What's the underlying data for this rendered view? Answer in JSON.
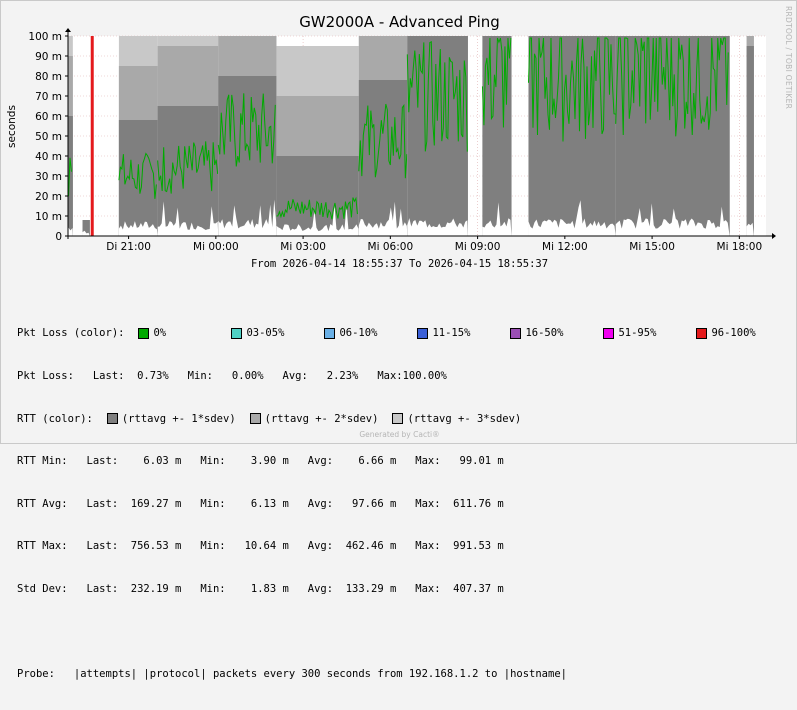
{
  "graph": {
    "title": "GW2000A - Advanced Ping",
    "ylabel": "seconds",
    "watermark": "RRDTOOL / TOBI OETIKER",
    "range_text": "From 2026-04-14 18:55:37 To 2026-04-15 18:55:37",
    "footer": "Generated by Cacti®"
  },
  "chart_data": {
    "type": "area",
    "title": "GW2000A - Advanced Ping",
    "ylabel": "seconds",
    "y_unit": "m",
    "ylim": [
      0,
      100
    ],
    "yticks": [
      0,
      10,
      20,
      30,
      40,
      50,
      60,
      70,
      80,
      90,
      100
    ],
    "ytick_labels": [
      "0",
      "10 m",
      "20 m",
      "30 m",
      "40 m",
      "50 m",
      "60 m",
      "70 m",
      "80 m",
      "90 m",
      "100 m"
    ],
    "xlim": [
      "2026-04-14 18:55",
      "2026-04-15 18:55"
    ],
    "xticks": [
      "2026-04-14 21:00",
      "2026-04-15 00:00",
      "2026-04-15 03:00",
      "2026-04-15 06:00",
      "2026-04-15 09:00",
      "2026-04-15 12:00",
      "2026-04-15 15:00",
      "2026-04-15 18:00"
    ],
    "xtick_labels": [
      "Di 21:00",
      "Mi 00:00",
      "Mi 03:00",
      "Mi 06:00",
      "Mi 09:00",
      "Mi 12:00",
      "Mi 15:00",
      "Mi 18:00"
    ],
    "grid": true,
    "series_colors": {
      "rttavg_1sdev": "#7f7f7f",
      "rttavg_2sdev": "#a9a9a9",
      "rttavg_3sdev": "#c8c8c8",
      "rtt_avg_line": "#00aa00",
      "rtt_min_area": "#ffffff",
      "loss_96_100": "#e41a1c"
    },
    "segments": [
      {
        "start": "2026-04-14 18:56",
        "end": "2026-04-14 19:05",
        "avg": 30,
        "dev1": 60,
        "dev2": 90,
        "dev3": 100,
        "min": 4
      },
      {
        "start": "2026-04-14 19:25",
        "end": "2026-04-14 19:40",
        "avg": 0,
        "dev1": 8,
        "dev2": 8,
        "dev3": 8,
        "min": 2
      },
      {
        "start": "2026-04-14 20:00",
        "end": "2026-04-14 20:25",
        "avg": 0,
        "dev1": 0,
        "dev2": 0,
        "dev3": 0,
        "min": 0
      },
      {
        "start": "2026-04-14 20:40",
        "end": "2026-04-14 22:00",
        "avg": 30,
        "dev1": 58,
        "dev2": 85,
        "dev3": 100,
        "min": 5
      },
      {
        "start": "2026-04-14 22:00",
        "end": "2026-04-15 00:05",
        "avg": 34,
        "dev1": 65,
        "dev2": 95,
        "dev3": 100,
        "min": 5
      },
      {
        "start": "2026-04-15 00:05",
        "end": "2026-04-15 02:05",
        "avg": 52,
        "dev1": 80,
        "dev2": 100,
        "dev3": 100,
        "min": 6
      },
      {
        "start": "2026-04-15 02:05",
        "end": "2026-04-15 04:55",
        "avg": 14,
        "dev1": 40,
        "dev2": 70,
        "dev3": 95,
        "min": 4
      },
      {
        "start": "2026-04-15 04:55",
        "end": "2026-04-15 06:35",
        "avg": 48,
        "dev1": 78,
        "dev2": 100,
        "dev3": 100,
        "min": 6
      },
      {
        "start": "2026-04-15 06:35",
        "end": "2026-04-15 08:40",
        "avg": 70,
        "dev1": 100,
        "dev2": 100,
        "dev3": 100,
        "min": 6
      },
      {
        "start": "2026-04-15 09:10",
        "end": "2026-04-15 10:10",
        "avg": 80,
        "dev1": 100,
        "dev2": 100,
        "dev3": 100,
        "min": 6
      },
      {
        "start": "2026-04-15 10:45",
        "end": "2026-04-15 13:45",
        "avg": 78,
        "dev1": 100,
        "dev2": 100,
        "dev3": 100,
        "min": 6
      },
      {
        "start": "2026-04-15 13:45",
        "end": "2026-04-15 17:40",
        "avg": 82,
        "dev1": 100,
        "dev2": 100,
        "dev3": 100,
        "min": 6
      },
      {
        "start": "2026-04-15 18:15",
        "end": "2026-04-15 18:30",
        "avg": 0,
        "dev1": 95,
        "dev2": 100,
        "dev3": 100,
        "min": 6
      }
    ],
    "loss_markers": [
      {
        "time": "2026-04-14 19:45",
        "class": "96-100%"
      }
    ]
  },
  "legend": {
    "pkt_loss_color": {
      "label": "Pkt Loss (color):",
      "items": [
        {
          "label": "0%",
          "color": "#00aa00"
        },
        {
          "label": "03-05%",
          "color": "#4fd1c5"
        },
        {
          "label": "06-10%",
          "color": "#6ab0e6"
        },
        {
          "label": "11-15%",
          "color": "#3a5fd6"
        },
        {
          "label": "16-50%",
          "color": "#9b4fb5"
        },
        {
          "label": "51-95%",
          "color": "#f000f0"
        },
        {
          "label": "96-100%",
          "color": "#e41a1c"
        }
      ]
    },
    "pkt_loss_stats": "Pkt Loss:   Last:  0.73%   Min:   0.00%   Avg:   2.23%   Max:100.00%",
    "rtt_color": {
      "label": "RTT (color):",
      "items": [
        {
          "label": "(rttavg +- 1*sdev)",
          "color": "#7f7f7f"
        },
        {
          "label": "(rttavg +- 2*sdev)",
          "color": "#a9a9a9"
        },
        {
          "label": "(rttavg +- 3*sdev)",
          "color": "#c8c8c8"
        }
      ]
    },
    "stats": [
      "RTT Min:   Last:    6.03 m   Min:    3.90 m   Avg:    6.66 m   Max:   99.01 m",
      "RTT Avg:   Last:  169.27 m   Min:    6.13 m   Avg:   97.66 m   Max:  611.76 m",
      "RTT Max:   Last:  756.53 m   Min:   10.64 m   Avg:  462.46 m   Max:  991.53 m",
      "Std Dev:   Last:  232.19 m   Min:    1.83 m   Avg:  133.29 m   Max:  407.37 m"
    ],
    "probe": "Probe:   |attempts| |protocol| packets every 300 seconds from 192.168.1.2 to |hostname|"
  }
}
